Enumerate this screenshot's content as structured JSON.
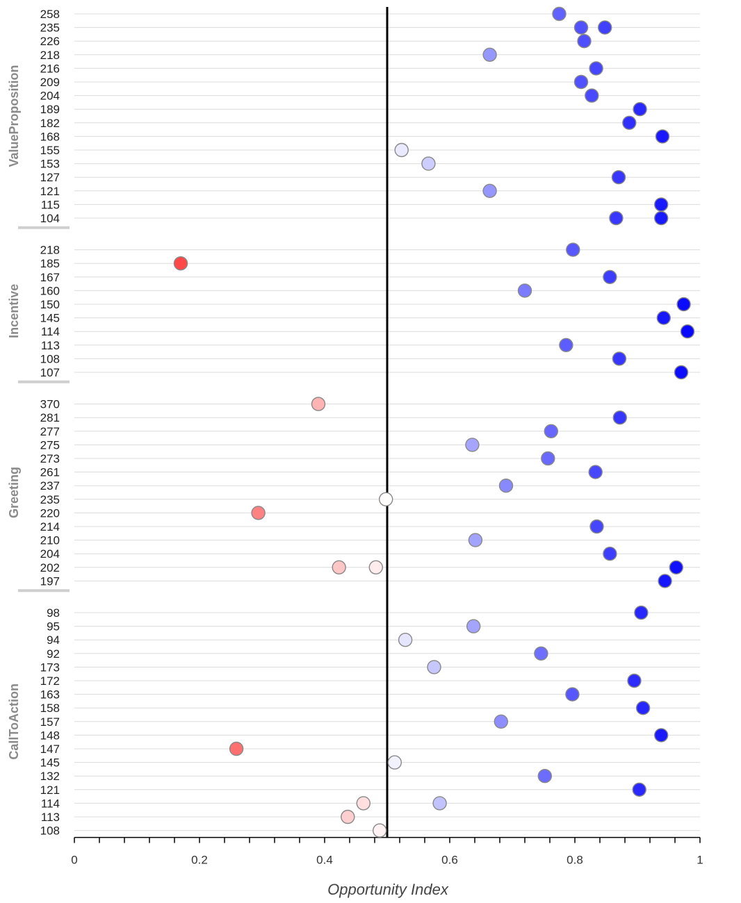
{
  "chart_data": {
    "type": "scatter",
    "xlabel": "Opportunity Index",
    "xlim": [
      0,
      1
    ],
    "x_ticks": [
      "0",
      "0.2",
      "0.4",
      "0.6",
      "0.8",
      "1"
    ],
    "reference_line": 0.5,
    "colors": {
      "high": "#0000ff",
      "low": "#ff0000",
      "mid": "#ffffff"
    },
    "groups": [
      {
        "name": "ValueProposition",
        "rows": [
          {
            "label": "258",
            "values": [
              0.775
            ]
          },
          {
            "label": "235",
            "values": [
              0.81,
              0.848
            ]
          },
          {
            "label": "226",
            "values": [
              0.815
            ]
          },
          {
            "label": "218",
            "values": [
              0.664
            ]
          },
          {
            "label": "216",
            "values": [
              0.834
            ]
          },
          {
            "label": "209",
            "values": [
              0.81
            ]
          },
          {
            "label": "204",
            "values": [
              0.827
            ]
          },
          {
            "label": "189",
            "values": [
              0.904
            ]
          },
          {
            "label": "182",
            "values": [
              0.887
            ]
          },
          {
            "label": "168",
            "values": [
              0.94
            ]
          },
          {
            "label": "155",
            "values": [
              0.523
            ]
          },
          {
            "label": "153",
            "values": [
              0.566
            ]
          },
          {
            "label": "127",
            "values": [
              0.87
            ]
          },
          {
            "label": "121",
            "values": [
              0.664
            ]
          },
          {
            "label": "115",
            "values": [
              0.938
            ]
          },
          {
            "label": "104",
            "values": [
              0.866,
              0.938
            ]
          }
        ]
      },
      {
        "name": "Incentive",
        "rows": [
          {
            "label": "218",
            "values": [
              0.797
            ]
          },
          {
            "label": "185",
            "values": [
              0.17
            ]
          },
          {
            "label": "167",
            "values": [
              0.856
            ]
          },
          {
            "label": "160",
            "values": [
              0.72
            ]
          },
          {
            "label": "150",
            "values": [
              0.974
            ]
          },
          {
            "label": "145",
            "values": [
              0.942
            ]
          },
          {
            "label": "114",
            "values": [
              0.98
            ]
          },
          {
            "label": "113",
            "values": [
              0.786
            ]
          },
          {
            "label": "108",
            "values": [
              0.871
            ]
          },
          {
            "label": "107",
            "values": [
              0.97
            ]
          }
        ]
      },
      {
        "name": "Greeting",
        "rows": [
          {
            "label": "370",
            "values": [
              0.39
            ]
          },
          {
            "label": "281",
            "values": [
              0.872
            ]
          },
          {
            "label": "277",
            "values": [
              0.762
            ]
          },
          {
            "label": "275",
            "values": [
              0.636
            ]
          },
          {
            "label": "273",
            "values": [
              0.757
            ]
          },
          {
            "label": "261",
            "values": [
              0.833
            ]
          },
          {
            "label": "237",
            "values": [
              0.69
            ]
          },
          {
            "label": "235",
            "values": [
              0.498
            ]
          },
          {
            "label": "220",
            "values": [
              0.294
            ]
          },
          {
            "label": "214",
            "values": [
              0.835
            ]
          },
          {
            "label": "210",
            "values": [
              0.641
            ]
          },
          {
            "label": "204",
            "values": [
              0.856
            ]
          },
          {
            "label": "202",
            "values": [
              0.423,
              0.482,
              0.962
            ]
          },
          {
            "label": "197",
            "values": [
              0.944
            ]
          }
        ]
      },
      {
        "name": "CallToAction",
        "rows": [
          {
            "label": "98",
            "values": [
              0.906
            ]
          },
          {
            "label": "95",
            "values": [
              0.638
            ]
          },
          {
            "label": "94",
            "values": [
              0.529
            ]
          },
          {
            "label": "92",
            "values": [
              0.746
            ]
          },
          {
            "label": "173",
            "values": [
              0.575
            ]
          },
          {
            "label": "172",
            "values": [
              0.895
            ]
          },
          {
            "label": "163",
            "values": [
              0.796
            ]
          },
          {
            "label": "158",
            "values": [
              0.909
            ]
          },
          {
            "label": "157",
            "values": [
              0.682
            ]
          },
          {
            "label": "148",
            "values": [
              0.938
            ]
          },
          {
            "label": "147",
            "values": [
              0.259
            ]
          },
          {
            "label": "145",
            "values": [
              0.512
            ]
          },
          {
            "label": "132",
            "values": [
              0.752
            ]
          },
          {
            "label": "121",
            "values": [
              0.903
            ]
          },
          {
            "label": "114",
            "values": [
              0.462,
              0.584
            ]
          },
          {
            "label": "113",
            "values": [
              0.437
            ]
          },
          {
            "label": "108",
            "values": [
              0.488
            ]
          }
        ]
      }
    ]
  }
}
